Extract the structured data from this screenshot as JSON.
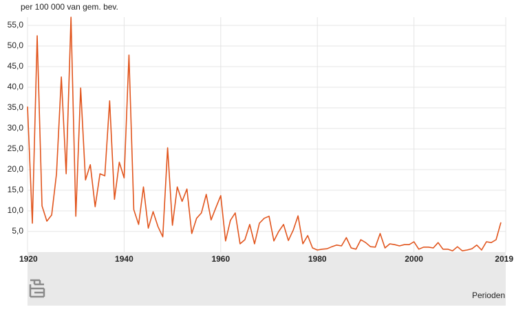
{
  "chart_data": {
    "type": "line",
    "y_label": "per 100 000 van gem. bev.",
    "x_label": "Perioden",
    "color": "#e1541c",
    "grid": true,
    "x": [
      1920,
      1921,
      1922,
      1923,
      1924,
      1925,
      1926,
      1927,
      1928,
      1929,
      1930,
      1931,
      1932,
      1933,
      1934,
      1935,
      1936,
      1937,
      1938,
      1939,
      1940,
      1941,
      1942,
      1943,
      1944,
      1945,
      1946,
      1947,
      1948,
      1949,
      1950,
      1951,
      1952,
      1953,
      1954,
      1955,
      1956,
      1957,
      1958,
      1959,
      1960,
      1961,
      1962,
      1963,
      1964,
      1965,
      1966,
      1967,
      1968,
      1969,
      1970,
      1971,
      1972,
      1973,
      1974,
      1975,
      1976,
      1977,
      1978,
      1979,
      1980,
      1981,
      1982,
      1983,
      1984,
      1985,
      1986,
      1987,
      1988,
      1989,
      1990,
      1991,
      1992,
      1993,
      1994,
      1995,
      1996,
      1997,
      1998,
      1999,
      2000,
      2001,
      2002,
      2003,
      2004,
      2005,
      2006,
      2007,
      2008,
      2009,
      2010,
      2011,
      2012,
      2013,
      2014,
      2015,
      2016,
      2017,
      2018
    ],
    "values": [
      35.3,
      7.0,
      52.5,
      11.2,
      7.5,
      9.0,
      19.0,
      42.5,
      19.0,
      57.0,
      8.7,
      39.8,
      17.5,
      21.2,
      11.0,
      19.0,
      18.5,
      36.7,
      12.8,
      21.8,
      18.0,
      47.8,
      10.3,
      6.7,
      15.8,
      5.8,
      9.8,
      6.2,
      3.7,
      25.3,
      6.5,
      15.8,
      12.3,
      15.3,
      4.5,
      8.2,
      9.5,
      14.0,
      7.8,
      10.8,
      13.7,
      2.7,
      7.7,
      9.5,
      2.0,
      3.0,
      6.7,
      2.0,
      7.0,
      8.2,
      8.7,
      2.7,
      5.0,
      6.7,
      2.8,
      5.3,
      8.8,
      2.0,
      4.0,
      1.0,
      0.5,
      0.7,
      0.8,
      1.3,
      1.7,
      1.5,
      3.5,
      1.0,
      0.7,
      3.0,
      2.3,
      1.3,
      1.2,
      4.5,
      1.0,
      2.0,
      1.8,
      1.5,
      1.8,
      1.8,
      2.5,
      0.7,
      1.2,
      1.2,
      1.0,
      2.3,
      0.7,
      0.7,
      0.3,
      1.3,
      0.3,
      0.5,
      0.8,
      1.7,
      0.5,
      2.5,
      2.3,
      3.0,
      7.2
    ],
    "xlim": [
      1920,
      2019
    ],
    "xticks": [
      1920,
      1940,
      1960,
      1980,
      2000,
      2019
    ],
    "ylim": [
      0,
      57
    ],
    "yticks": [
      {
        "value": 5,
        "label": "5,0"
      },
      {
        "value": 10,
        "label": "10,0"
      },
      {
        "value": 15,
        "label": "15,0"
      },
      {
        "value": 20,
        "label": "20,0"
      },
      {
        "value": 25,
        "label": "25,0"
      },
      {
        "value": 30,
        "label": "30,0"
      },
      {
        "value": 35,
        "label": "35,0"
      },
      {
        "value": 40,
        "label": "40,0"
      },
      {
        "value": 45,
        "label": "45,0"
      },
      {
        "value": 50,
        "label": "50,0"
      },
      {
        "value": 55,
        "label": "55,0"
      }
    ]
  }
}
